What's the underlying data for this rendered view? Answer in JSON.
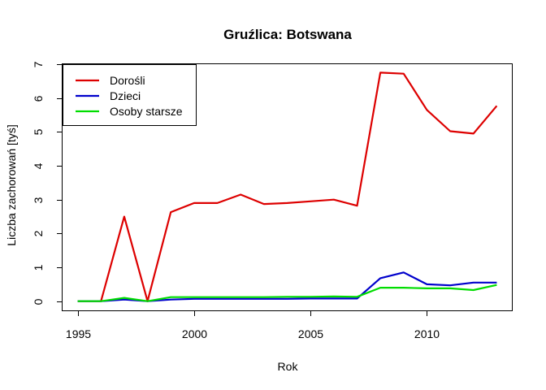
{
  "chart_data": {
    "type": "line",
    "title": "Gruźlica: Botswana",
    "xlabel": "Rok",
    "ylabel": "Liczba zachorowań [tyś]",
    "xlim": [
      1994.35,
      2013.65
    ],
    "ylim": [
      -0.27,
      7.0
    ],
    "x_ticks": [
      1995,
      2000,
      2005,
      2010
    ],
    "y_ticks": [
      0,
      1,
      2,
      3,
      4,
      5,
      6,
      7
    ],
    "grid": false,
    "legend_position": "top-left",
    "x": [
      1995,
      1996,
      1997,
      1998,
      1999,
      2000,
      2001,
      2002,
      2003,
      2004,
      2005,
      2006,
      2007,
      2008,
      2009,
      2010,
      2011,
      2012,
      2013
    ],
    "series": [
      {
        "name": "Dorośli",
        "color": "#dd0000",
        "values": [
          0.0,
          0.0,
          2.5,
          0.0,
          2.63,
          2.9,
          2.9,
          3.15,
          2.87,
          2.9,
          2.95,
          3.0,
          2.82,
          6.75,
          6.72,
          5.65,
          5.02,
          4.95,
          5.77
        ]
      },
      {
        "name": "Dzieci",
        "color": "#0000cc",
        "values": [
          0.0,
          0.0,
          0.05,
          0.0,
          0.05,
          0.07,
          0.07,
          0.07,
          0.07,
          0.07,
          0.08,
          0.08,
          0.08,
          0.68,
          0.85,
          0.5,
          0.47,
          0.55,
          0.55
        ]
      },
      {
        "name": "Osoby starsze",
        "color": "#00dd00",
        "values": [
          0.0,
          0.0,
          0.1,
          0.0,
          0.12,
          0.12,
          0.12,
          0.12,
          0.12,
          0.13,
          0.13,
          0.14,
          0.13,
          0.4,
          0.4,
          0.38,
          0.38,
          0.33,
          0.48
        ]
      }
    ]
  }
}
